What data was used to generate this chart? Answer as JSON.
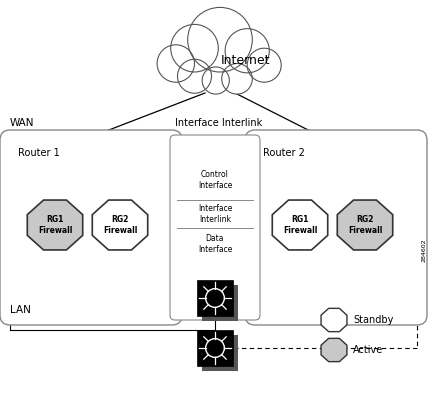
{
  "bg_color": "#ffffff",
  "cloud_label": "Internet",
  "router1_label": "Router 1",
  "router2_label": "Router 2",
  "wan_label": "WAN",
  "lan_label": "LAN",
  "interlink_label": "Interface Interlink",
  "control_label": "Control\nInterface",
  "interlink_mid_label": "Interface\nInterlink",
  "data_label": "Data\nInterface",
  "standby_label": "Standby",
  "active_label": "Active",
  "gray_fill": "#c8c8c8",
  "figure_id": "284602"
}
